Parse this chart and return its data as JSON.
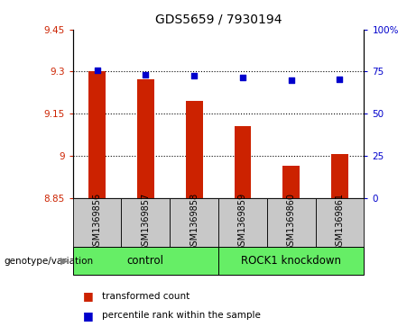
{
  "title": "GDS5659 / 7930194",
  "samples": [
    "GSM1369856",
    "GSM1369857",
    "GSM1369858",
    "GSM1369859",
    "GSM1369860",
    "GSM1369861"
  ],
  "bar_values": [
    9.302,
    9.272,
    9.195,
    9.107,
    8.963,
    9.007
  ],
  "percentile_values": [
    75.5,
    73.0,
    72.5,
    71.5,
    70.0,
    70.5
  ],
  "bar_bottom": 8.85,
  "ylim_left": [
    8.85,
    9.45
  ],
  "ylim_right": [
    0,
    100
  ],
  "yticks_left": [
    8.85,
    9.0,
    9.15,
    9.3,
    9.45
  ],
  "ytick_labels_left": [
    "8.85",
    "9",
    "9.15",
    "9.3",
    "9.45"
  ],
  "yticks_right": [
    0,
    25,
    50,
    75,
    100
  ],
  "ytick_labels_right": [
    "0",
    "25",
    "50",
    "75",
    "100%"
  ],
  "bar_color": "#cc2200",
  "dot_color": "#0000cc",
  "control_label": "control",
  "knockdown_label": "ROCK1 knockdown",
  "genotype_label": "genotype/variation",
  "legend_bar_label": "transformed count",
  "legend_dot_label": "percentile rank within the sample",
  "green_color": "#66ee66",
  "gray_color": "#c8c8c8",
  "bar_width": 0.35
}
